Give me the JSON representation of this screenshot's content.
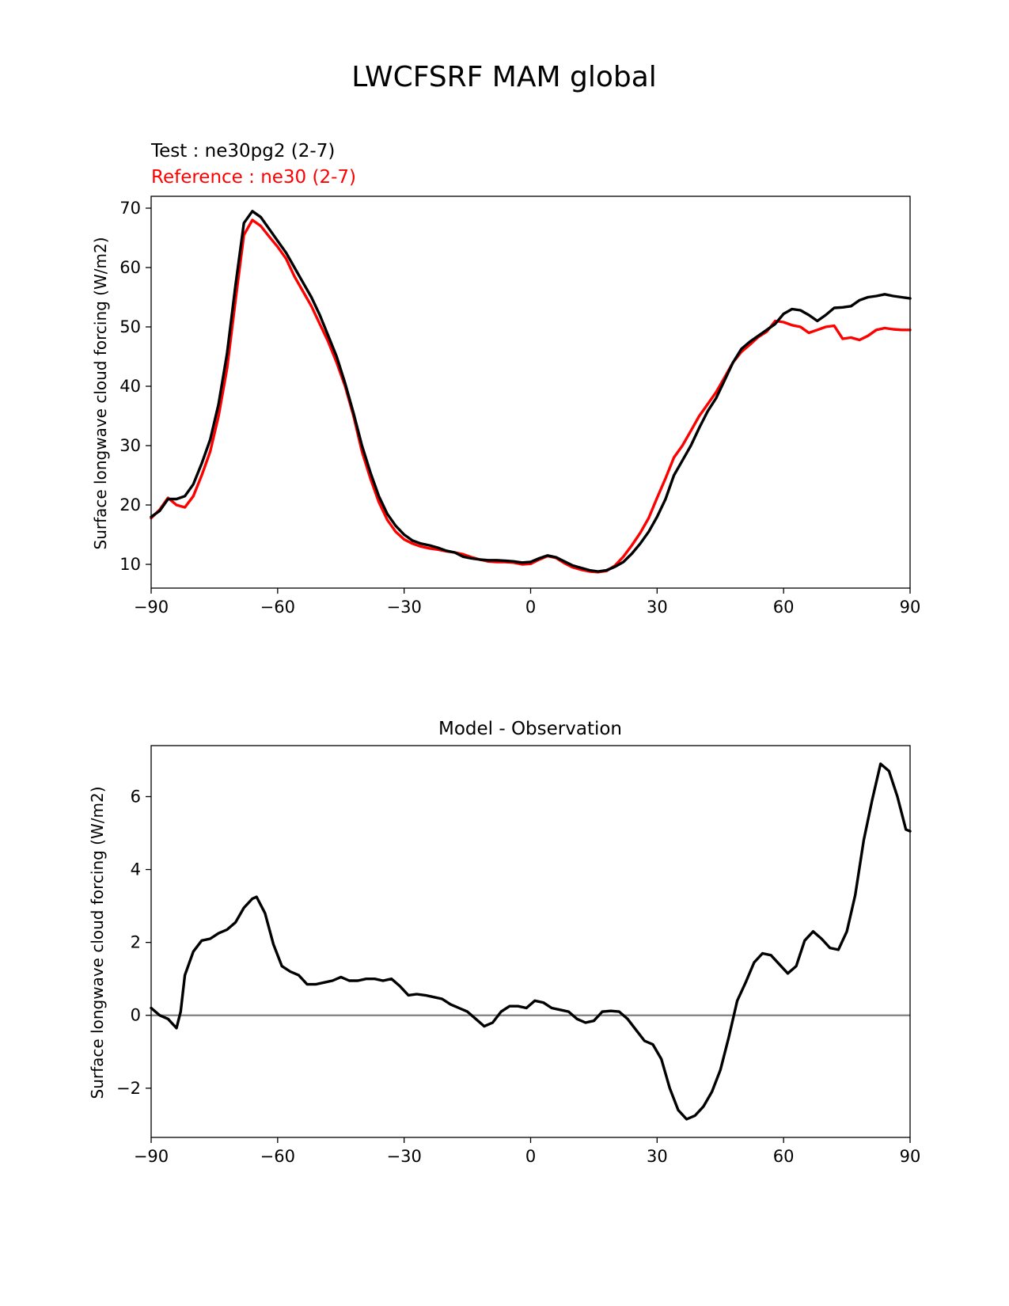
{
  "figure": {
    "title": "LWCFSRF MAM global"
  },
  "colors": {
    "test": "#000000",
    "reference": "#ff0000",
    "zero_line": "#808080"
  },
  "chart_data": [
    {
      "type": "line",
      "subtitle_test": "Test : ne30pg2 (2-7)",
      "subtitle_reference": "Reference : ne30 (2-7)",
      "xlabel": "",
      "ylabel": "Surface longwave cloud forcing (W/m2)",
      "xlim": [
        -90,
        90
      ],
      "ylim": [
        6,
        72
      ],
      "xticks": [
        "−90",
        "−60",
        "−30",
        "0",
        "30",
        "60",
        "90"
      ],
      "yticks": [
        "10",
        "20",
        "30",
        "40",
        "50",
        "60",
        "70"
      ],
      "x": [
        -90,
        -88,
        -86,
        -84,
        -82,
        -80,
        -78,
        -76,
        -74,
        -72,
        -70,
        -68,
        -66,
        -64,
        -62,
        -60,
        -58,
        -56,
        -54,
        -52,
        -50,
        -48,
        -46,
        -44,
        -42,
        -40,
        -38,
        -36,
        -34,
        -32,
        -30,
        -28,
        -26,
        -24,
        -22,
        -20,
        -18,
        -16,
        -14,
        -12,
        -10,
        -8,
        -6,
        -4,
        -2,
        0,
        2,
        4,
        6,
        8,
        10,
        12,
        14,
        16,
        18,
        20,
        22,
        24,
        26,
        28,
        30,
        32,
        34,
        36,
        38,
        40,
        42,
        44,
        46,
        48,
        50,
        52,
        54,
        56,
        58,
        60,
        62,
        64,
        66,
        68,
        70,
        72,
        74,
        76,
        78,
        80,
        82,
        84,
        86,
        88,
        90
      ],
      "series": [
        {
          "name": "Test : ne30pg2 (2-7)",
          "values": [
            18.0,
            19.0,
            21.0,
            21.0,
            21.5,
            23.5,
            27.0,
            31.0,
            37.0,
            45.5,
            57.0,
            67.5,
            69.5,
            68.5,
            66.5,
            64.5,
            62.5,
            60.0,
            57.5,
            55.0,
            52.0,
            48.5,
            45.0,
            40.5,
            35.5,
            30.0,
            25.5,
            21.5,
            18.5,
            16.5,
            15.0,
            14.0,
            13.5,
            13.2,
            12.8,
            12.3,
            12.0,
            11.3,
            11.0,
            10.8,
            10.7,
            10.7,
            10.6,
            10.5,
            10.3,
            10.4,
            11.0,
            11.5,
            11.2,
            10.5,
            9.8,
            9.4,
            9.0,
            8.8,
            9.0,
            9.6,
            10.4,
            11.8,
            13.5,
            15.5,
            18.0,
            21.0,
            25.0,
            27.5,
            30.0,
            33.0,
            35.8,
            38.0,
            41.0,
            44.0,
            46.3,
            47.5,
            48.5,
            49.5,
            50.5,
            52.2,
            53.0,
            52.8,
            52.0,
            51.0,
            52.0,
            53.2,
            53.3,
            53.5,
            54.5,
            55.0,
            55.2,
            55.5,
            55.2,
            55.0,
            54.8
          ]
        },
        {
          "name": "Reference : ne30 (2-7)",
          "values": [
            17.8,
            19.2,
            21.2,
            20.0,
            19.6,
            21.5,
            25.0,
            29.0,
            35.0,
            43.0,
            54.5,
            65.5,
            68.0,
            67.0,
            65.2,
            63.5,
            61.5,
            58.5,
            56.0,
            53.5,
            50.5,
            47.5,
            44.0,
            40.0,
            35.0,
            29.0,
            24.5,
            20.5,
            17.5,
            15.5,
            14.2,
            13.5,
            13.0,
            12.7,
            12.5,
            12.2,
            12.0,
            11.7,
            11.2,
            10.8,
            10.5,
            10.4,
            10.4,
            10.3,
            10.0,
            10.1,
            10.8,
            11.4,
            11.1,
            10.2,
            9.5,
            9.1,
            8.8,
            8.7,
            8.9,
            9.8,
            11.3,
            13.2,
            15.3,
            17.8,
            21.2,
            24.5,
            28.0,
            30.0,
            32.5,
            35.0,
            37.0,
            39.0,
            41.5,
            44.0,
            45.8,
            47.0,
            48.3,
            49.2,
            51.0,
            50.8,
            50.3,
            50.0,
            49.0,
            49.5,
            50.0,
            50.2,
            48.0,
            48.2,
            47.8,
            48.5,
            49.5,
            49.8,
            49.6,
            49.5,
            49.5
          ]
        }
      ]
    },
    {
      "type": "line",
      "title": "Model - Observation",
      "xlabel": "",
      "ylabel": "Surface longwave cloud forcing (W/m2)",
      "xlim": [
        -90,
        90
      ],
      "ylim": [
        -3.35,
        7.4
      ],
      "xticks": [
        "−90",
        "−60",
        "−30",
        "0",
        "30",
        "60",
        "90"
      ],
      "yticks": [
        "−2",
        "0",
        "2",
        "4",
        "6"
      ],
      "reference_line": 0,
      "x": [
        -90,
        -88,
        -86,
        -84,
        -83,
        -82,
        -80,
        -78,
        -76,
        -74,
        -72,
        -70,
        -68,
        -66,
        -65,
        -63,
        -61,
        -59,
        -57,
        -55,
        -53,
        -51,
        -49,
        -47,
        -45,
        -43,
        -41,
        -39,
        -37,
        -35,
        -33,
        -31,
        -29,
        -27,
        -25,
        -23,
        -21,
        -19,
        -17,
        -15,
        -13,
        -11,
        -9,
        -7,
        -5,
        -3,
        -1,
        1,
        3,
        5,
        7,
        9,
        11,
        13,
        15,
        17,
        19,
        21,
        23,
        25,
        27,
        29,
        31,
        33,
        35,
        37,
        39,
        41,
        43,
        45,
        47,
        49,
        51,
        53,
        55,
        57,
        59,
        61,
        63,
        65,
        67,
        69,
        71,
        73,
        75,
        77,
        79,
        81,
        83,
        85,
        87,
        89,
        90
      ],
      "series": [
        {
          "name": "Model - Observation",
          "values": [
            0.2,
            0.0,
            -0.1,
            -0.35,
            0.1,
            1.1,
            1.75,
            2.05,
            2.1,
            2.25,
            2.35,
            2.55,
            2.95,
            3.2,
            3.25,
            2.8,
            1.95,
            1.35,
            1.2,
            1.1,
            0.85,
            0.85,
            0.9,
            0.95,
            1.05,
            0.95,
            0.95,
            1.0,
            1.0,
            0.95,
            1.0,
            0.8,
            0.55,
            0.58,
            0.55,
            0.5,
            0.45,
            0.3,
            0.2,
            0.1,
            -0.1,
            -0.3,
            -0.2,
            0.1,
            0.25,
            0.25,
            0.2,
            0.4,
            0.35,
            0.2,
            0.15,
            0.1,
            -0.1,
            -0.2,
            -0.15,
            0.1,
            0.12,
            0.1,
            -0.1,
            -0.4,
            -0.7,
            -0.8,
            -1.2,
            -2.0,
            -2.6,
            -2.85,
            -2.75,
            -2.5,
            -2.1,
            -1.5,
            -0.6,
            0.4,
            0.9,
            1.45,
            1.7,
            1.65,
            1.4,
            1.15,
            1.35,
            2.05,
            2.3,
            2.1,
            1.85,
            1.8,
            2.3,
            3.3,
            4.8,
            5.9,
            6.9,
            6.7,
            6.0,
            5.1,
            5.05
          ]
        }
      ]
    }
  ]
}
